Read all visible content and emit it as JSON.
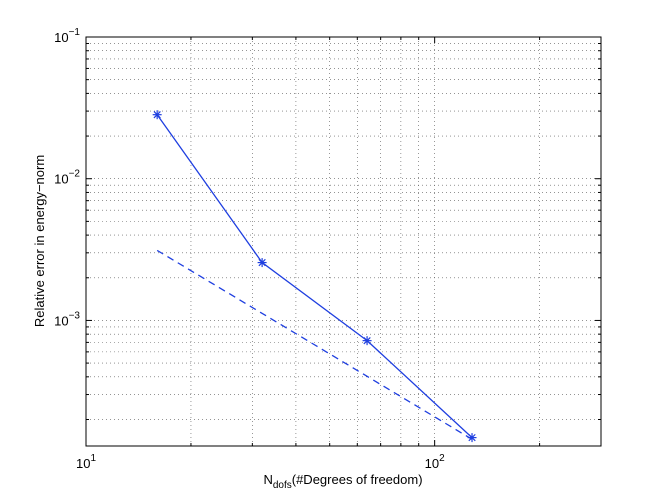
{
  "chart_data": {
    "type": "line",
    "title": "",
    "xlabel_main": "N",
    "xlabel_sub": "dofs",
    "xlabel_rest": "(#Degrees of freedom)",
    "ylabel": "Relative error in energy−norm",
    "xscale": "log",
    "yscale": "log",
    "xlim": [
      10,
      300
    ],
    "ylim": [
      0.00013,
      0.1
    ],
    "grid": true,
    "x_ticks": [
      {
        "value": 10,
        "base": "10",
        "exp": "1"
      },
      {
        "value": 100,
        "base": "10",
        "exp": "2"
      }
    ],
    "y_ticks": [
      {
        "value": 0.1,
        "base": "10",
        "exp": "−1"
      },
      {
        "value": 0.01,
        "base": "10",
        "exp": "−2"
      },
      {
        "value": 0.001,
        "base": "10",
        "exp": "−3"
      }
    ],
    "series": [
      {
        "style": "solid",
        "marker": "asterisk",
        "color": "#1f3fe0",
        "x": [
          16,
          32,
          64,
          128
        ],
        "y": [
          0.0283,
          0.00256,
          0.00072,
          0.000149
        ]
      },
      {
        "style": "dashed",
        "marker": "none",
        "color": "#1f3fe0",
        "x": [
          16,
          128
        ],
        "y": [
          0.00312,
          0.000145
        ]
      }
    ]
  }
}
